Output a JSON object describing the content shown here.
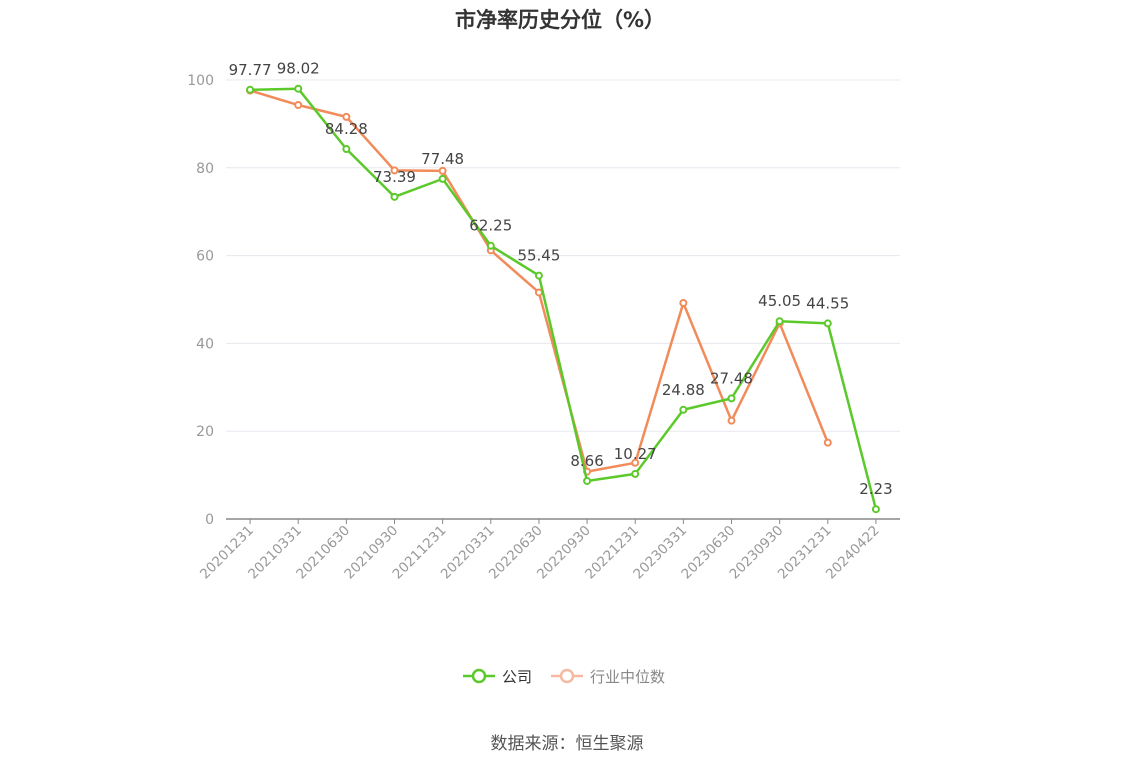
{
  "chart_data": {
    "type": "line",
    "title": "市净率历史分位（%）",
    "categories": [
      "20201231",
      "20210331",
      "20210630",
      "20210930",
      "20211231",
      "20220331",
      "20220630",
      "20220930",
      "20221231",
      "20230331",
      "20230630",
      "20230930",
      "20231231",
      "20240422"
    ],
    "ylim": [
      0,
      100
    ],
    "yticks": [
      0,
      20,
      40,
      60,
      80,
      100
    ],
    "grid": true,
    "legend_position": "bottom",
    "series": [
      {
        "name": "公司",
        "color": "#5cc92b",
        "values": [
          97.77,
          98.02,
          84.28,
          73.39,
          77.48,
          62.25,
          55.45,
          8.66,
          10.27,
          24.88,
          27.48,
          45.05,
          44.55,
          2.23
        ],
        "data_labels": [
          "97.77",
          "98.02",
          "84.28",
          "73.39",
          "77.48",
          "62.25",
          "55.45",
          "8.66",
          "10.27",
          "24.88",
          "27.48",
          "45.05",
          "44.55",
          "2.23"
        ]
      },
      {
        "name": "行业中位数",
        "color": "#f28b5a",
        "values": [
          97.6,
          94.3,
          91.6,
          79.4,
          79.3,
          61.2,
          51.6,
          10.8,
          12.8,
          49.2,
          22.4,
          44.6,
          17.4,
          null
        ]
      }
    ]
  },
  "legend": {
    "items": [
      {
        "label": "公司",
        "color": "#5cc92b"
      },
      {
        "label": "行业中位数",
        "color": "#f7b9a0"
      }
    ]
  },
  "footer": {
    "source": "数据来源：恒生聚源"
  }
}
